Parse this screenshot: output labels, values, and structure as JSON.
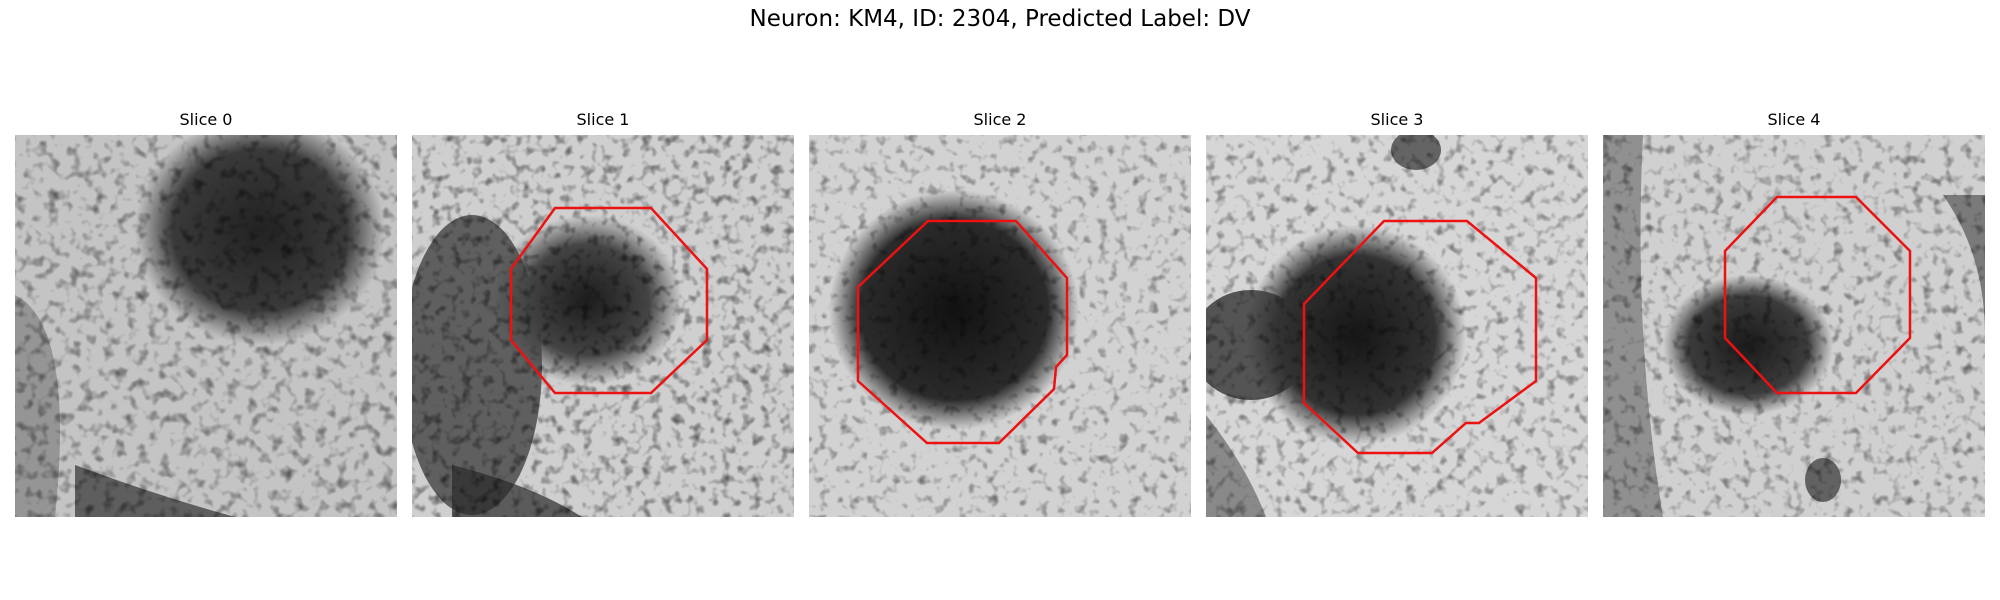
{
  "figure": {
    "title": "Neuron: KM4, ID: 2304, Predicted Label: DV"
  },
  "slices": [
    {
      "title": "Slice 0",
      "has_outline": false
    },
    {
      "title": "Slice 1",
      "has_outline": true
    },
    {
      "title": "Slice 2",
      "has_outline": true
    },
    {
      "title": "Slice 3",
      "has_outline": true
    },
    {
      "title": "Slice 4",
      "has_outline": true
    }
  ],
  "colors": {
    "outline": "#ee1111",
    "background": "#ffffff"
  }
}
